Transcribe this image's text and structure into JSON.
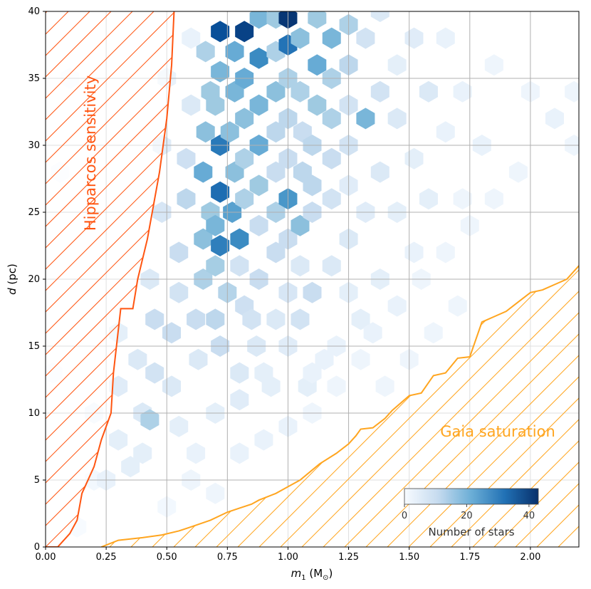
{
  "chart_data": {
    "type": "hexbin",
    "xlabel": "m₁ (M☉)",
    "xlabel_main": "m",
    "xlabel_sub": "1",
    "xlabel_unit_open": " (M",
    "xlabel_unit_sub": "⊙",
    "xlabel_unit_close": ")",
    "ylabel": "d (pc)",
    "ylabel_var": "d",
    "ylabel_unit": " (pc)",
    "xlim": [
      0,
      2.2
    ],
    "ylim": [
      0,
      40
    ],
    "x_ticks": [
      0.0,
      0.25,
      0.5,
      0.75,
      1.0,
      1.25,
      1.5,
      1.75,
      2.0
    ],
    "x_tick_labels": [
      "0.00",
      "0.25",
      "0.50",
      "0.75",
      "1.00",
      "1.25",
      "1.50",
      "1.75",
      "2.00"
    ],
    "y_ticks": [
      0,
      5,
      10,
      15,
      20,
      25,
      30,
      35,
      40
    ],
    "y_tick_labels": [
      "0",
      "5",
      "10",
      "15",
      "20",
      "25",
      "30",
      "35",
      "40"
    ],
    "grid": true,
    "colormap": [
      "#f7fbff",
      "#deebf7",
      "#c6dbef",
      "#9ecae1",
      "#6baed6",
      "#4292c6",
      "#2171b5",
      "#08519c",
      "#08306b"
    ],
    "colorbar": {
      "label": "Number of stars",
      "range": [
        0,
        43
      ],
      "ticks": [
        0,
        20,
        40
      ],
      "tick_labels": [
        "0",
        "20",
        "40"
      ],
      "placement": "lower-right"
    },
    "hexbin_points": [
      [
        0.13,
        1.5,
        0
      ],
      [
        0.03,
        13,
        0
      ],
      [
        0.06,
        28,
        0
      ],
      [
        0.1,
        35,
        0
      ],
      [
        0.2,
        5,
        1
      ],
      [
        0.2,
        10,
        2
      ],
      [
        0.25,
        5,
        3
      ],
      [
        0.3,
        8,
        4
      ],
      [
        0.35,
        6,
        4
      ],
      [
        0.3,
        12,
        5
      ],
      [
        0.4,
        10,
        6
      ],
      [
        0.4,
        7,
        4
      ],
      [
        0.3,
        16,
        4
      ],
      [
        0.38,
        14,
        6
      ],
      [
        0.43,
        9.5,
        14
      ],
      [
        0.45,
        13,
        8
      ],
      [
        0.45,
        17,
        10
      ],
      [
        0.43,
        20,
        6
      ],
      [
        0.48,
        25,
        7
      ],
      [
        0.48,
        30,
        5
      ],
      [
        0.5,
        35,
        3
      ],
      [
        0.52,
        12,
        6
      ],
      [
        0.52,
        16,
        10
      ],
      [
        0.55,
        19,
        8
      ],
      [
        0.55,
        22,
        10
      ],
      [
        0.58,
        26,
        12
      ],
      [
        0.58,
        29,
        9
      ],
      [
        0.6,
        33,
        6
      ],
      [
        0.6,
        38,
        3
      ],
      [
        0.63,
        14,
        6
      ],
      [
        0.62,
        17,
        10
      ],
      [
        0.65,
        20,
        14
      ],
      [
        0.65,
        23,
        18
      ],
      [
        0.68,
        25,
        16
      ],
      [
        0.65,
        28,
        22
      ],
      [
        0.66,
        31,
        18
      ],
      [
        0.68,
        34,
        16
      ],
      [
        0.66,
        37,
        14
      ],
      [
        0.7,
        10,
        4
      ],
      [
        0.72,
        15,
        10
      ],
      [
        0.7,
        17,
        12
      ],
      [
        0.7,
        21,
        15
      ],
      [
        0.7,
        24,
        20
      ],
      [
        0.72,
        22.5,
        30
      ],
      [
        0.72,
        26.5,
        33
      ],
      [
        0.72,
        30,
        31
      ],
      [
        0.7,
        33,
        16
      ],
      [
        0.72,
        35.5,
        20
      ],
      [
        0.72,
        38.5,
        38
      ],
      [
        0.75,
        19,
        13
      ],
      [
        0.77,
        25,
        24
      ],
      [
        0.78,
        28,
        18
      ],
      [
        0.76,
        31,
        18
      ],
      [
        0.78,
        34,
        20
      ],
      [
        0.78,
        37,
        22
      ],
      [
        0.8,
        13,
        6
      ],
      [
        0.82,
        18,
        9
      ],
      [
        0.8,
        21,
        8
      ],
      [
        0.8,
        23,
        28
      ],
      [
        0.82,
        26,
        14
      ],
      [
        0.82,
        29,
        14
      ],
      [
        0.82,
        32,
        18
      ],
      [
        0.82,
        35,
        22
      ],
      [
        0.82,
        38.5,
        40
      ],
      [
        0.87,
        15,
        6
      ],
      [
        0.85,
        17,
        8
      ],
      [
        0.88,
        20,
        10
      ],
      [
        0.88,
        24,
        10
      ],
      [
        0.88,
        27,
        16
      ],
      [
        0.88,
        30,
        22
      ],
      [
        0.88,
        33,
        20
      ],
      [
        0.88,
        36.5,
        28
      ],
      [
        0.88,
        39.5,
        20
      ],
      [
        0.93,
        12,
        4
      ],
      [
        0.95,
        17,
        6
      ],
      [
        0.95,
        22,
        10
      ],
      [
        0.95,
        25,
        14
      ],
      [
        0.95,
        28,
        10
      ],
      [
        0.95,
        31,
        12
      ],
      [
        0.95,
        34,
        18
      ],
      [
        0.95,
        37,
        14
      ],
      [
        0.95,
        39.5,
        16
      ],
      [
        1.0,
        15,
        5
      ],
      [
        1.0,
        19,
        7
      ],
      [
        1.0,
        23,
        10
      ],
      [
        1.0,
        26,
        26
      ],
      [
        1.0,
        29,
        10
      ],
      [
        1.0,
        32,
        12
      ],
      [
        1.0,
        35,
        14
      ],
      [
        1.0,
        37.5,
        32
      ],
      [
        1.0,
        39.5,
        42
      ],
      [
        1.05,
        17,
        8
      ],
      [
        1.05,
        21,
        6
      ],
      [
        1.05,
        24,
        18
      ],
      [
        1.06,
        28,
        12
      ],
      [
        1.06,
        31,
        10
      ],
      [
        1.05,
        34,
        14
      ],
      [
        1.05,
        38,
        18
      ],
      [
        1.08,
        12,
        4
      ],
      [
        1.1,
        19,
        10
      ],
      [
        1.1,
        25,
        10
      ],
      [
        1.1,
        27,
        12
      ],
      [
        1.1,
        30,
        12
      ],
      [
        1.12,
        33,
        16
      ],
      [
        1.12,
        36,
        22
      ],
      [
        1.12,
        39.5,
        16
      ],
      [
        1.15,
        14,
        3
      ],
      [
        1.18,
        21,
        6
      ],
      [
        1.18,
        26,
        8
      ],
      [
        1.18,
        29,
        10
      ],
      [
        1.18,
        32,
        14
      ],
      [
        1.18,
        35,
        14
      ],
      [
        1.18,
        38,
        20
      ],
      [
        1.25,
        19,
        4
      ],
      [
        1.25,
        23,
        6
      ],
      [
        1.25,
        27,
        5
      ],
      [
        1.25,
        30,
        8
      ],
      [
        1.25,
        33,
        8
      ],
      [
        1.25,
        36,
        12
      ],
      [
        1.25,
        39,
        14
      ],
      [
        1.3,
        17,
        4
      ],
      [
        1.32,
        25,
        5
      ],
      [
        1.32,
        32,
        20
      ],
      [
        1.32,
        38,
        8
      ],
      [
        1.38,
        20,
        4
      ],
      [
        1.38,
        28,
        6
      ],
      [
        1.38,
        34,
        8
      ],
      [
        1.38,
        40,
        6
      ],
      [
        1.45,
        25,
        4
      ],
      [
        1.45,
        32,
        6
      ],
      [
        1.45,
        36,
        4
      ],
      [
        1.52,
        22,
        3
      ],
      [
        1.52,
        29,
        4
      ],
      [
        1.52,
        38,
        5
      ],
      [
        1.58,
        34,
        6
      ],
      [
        1.58,
        26,
        4
      ],
      [
        1.65,
        31,
        3
      ],
      [
        1.65,
        38,
        3
      ],
      [
        1.72,
        34,
        3
      ],
      [
        1.72,
        26,
        2
      ],
      [
        1.8,
        30,
        3
      ],
      [
        1.85,
        36,
        2
      ],
      [
        1.95,
        28,
        2
      ],
      [
        2.0,
        34,
        2
      ],
      [
        2.1,
        32,
        3
      ],
      [
        2.18,
        30,
        2
      ],
      [
        2.18,
        34,
        2
      ],
      [
        1.1,
        13,
        3
      ],
      [
        1.2,
        15,
        3
      ],
      [
        1.35,
        16,
        3
      ],
      [
        1.45,
        18,
        3
      ],
      [
        1.55,
        20,
        2
      ],
      [
        1.65,
        22,
        2
      ],
      [
        1.75,
        24,
        2
      ],
      [
        1.85,
        26,
        2
      ],
      [
        1.4,
        12,
        2
      ],
      [
        1.5,
        14,
        2
      ],
      [
        1.6,
        16,
        2
      ],
      [
        1.7,
        18,
        2
      ],
      [
        0.9,
        8,
        3
      ],
      [
        1.0,
        9,
        3
      ],
      [
        1.1,
        10,
        2
      ],
      [
        0.8,
        7,
        3
      ],
      [
        0.6,
        5,
        2
      ],
      [
        0.5,
        3,
        1
      ],
      [
        0.7,
        4,
        2
      ],
      [
        1.2,
        12,
        2
      ],
      [
        1.3,
        14,
        2
      ],
      [
        0.55,
        9,
        4
      ],
      [
        0.62,
        7,
        3
      ],
      [
        0.8,
        11,
        5
      ],
      [
        0.9,
        13,
        4
      ]
    ],
    "hipparcos_curve": {
      "m": [
        0.0,
        0.05,
        0.1,
        0.13,
        0.15,
        0.2,
        0.23,
        0.27,
        0.28,
        0.31,
        0.36,
        0.38,
        0.42,
        0.45,
        0.47,
        0.5,
        0.52,
        0.53
      ],
      "d": [
        0.0,
        0.0,
        1.0,
        2.0,
        4.0,
        6.0,
        8.0,
        10.0,
        13.0,
        17.8,
        17.8,
        20.0,
        23.0,
        26.0,
        28.0,
        32.0,
        36.0,
        40.0
      ]
    },
    "gaia_curve": {
      "m": [
        0.23,
        0.3,
        0.4,
        0.48,
        0.55,
        0.6,
        0.68,
        0.75,
        0.8,
        0.85,
        0.88,
        0.95,
        1.0,
        1.05,
        1.13,
        1.2,
        1.25,
        1.28,
        1.3,
        1.35,
        1.4,
        1.43,
        1.5,
        1.55,
        1.6,
        1.65,
        1.7,
        1.75,
        1.8,
        1.85,
        1.9,
        1.95,
        2.0,
        2.05,
        2.1,
        2.15,
        2.2
      ],
      "d": [
        0.0,
        0.5,
        0.7,
        0.9,
        1.2,
        1.5,
        2.0,
        2.6,
        2.9,
        3.2,
        3.5,
        4.0,
        4.5,
        5.0,
        6.2,
        7.0,
        7.7,
        8.3,
        8.8,
        8.9,
        9.6,
        10.2,
        11.3,
        11.5,
        12.8,
        13.0,
        14.1,
        14.2,
        16.8,
        17.2,
        17.6,
        18.3,
        19.0,
        19.2,
        19.6,
        20.0,
        21.0
      ]
    },
    "annotations": [
      {
        "text": "Hipparcos sensitivity",
        "color": "#ff5511",
        "placement": "upper-left, rotated vertical"
      },
      {
        "text": "Gaia saturation",
        "color": "#ffa51f",
        "placement": "lower-right"
      }
    ]
  }
}
